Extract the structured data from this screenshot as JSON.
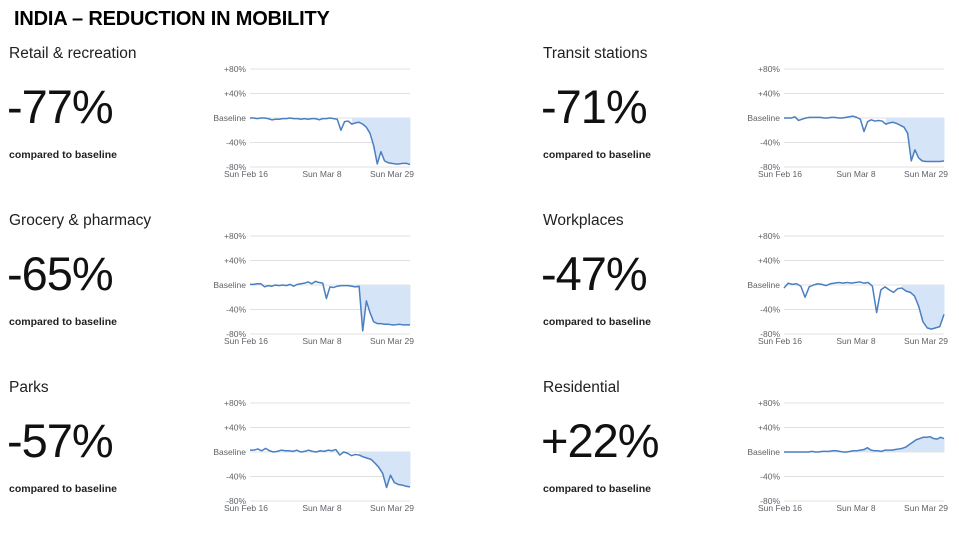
{
  "page_title": "INDIA – REDUCTION IN MOBILITY",
  "chart_data": [
    {
      "type": "line",
      "title": "Retail & recreation",
      "headline": "-77%",
      "caption": "compared to baseline",
      "ylim": [
        -80,
        80
      ],
      "yticks": [
        "+80%",
        "+40%",
        "Baseline",
        "-40%",
        "-80%"
      ],
      "xticks": [
        "Sun Feb 16",
        "Sun Mar 8",
        "Sun Mar 29"
      ],
      "shade_from_index": 28,
      "accent": "#4a7fc1",
      "shade": "#d6e4f7",
      "values": [
        0,
        0,
        -1,
        0,
        0,
        -1,
        -3,
        -2,
        -2,
        -1,
        -1,
        0,
        -1,
        -1,
        -2,
        -1,
        -2,
        -1,
        -1,
        -3,
        -1,
        -1,
        0,
        -1,
        -2,
        -20,
        -6,
        -5,
        -10,
        -8,
        -7,
        -10,
        -15,
        -25,
        -45,
        -75,
        -55,
        -70,
        -73,
        -74,
        -75,
        -75,
        -74,
        -74,
        -76
      ]
    },
    {
      "type": "line",
      "title": "Transit stations",
      "headline": "-71%",
      "caption": "compared to baseline",
      "ylim": [
        -80,
        80
      ],
      "yticks": [
        "+80%",
        "+40%",
        "Baseline",
        "-40%",
        "-80%"
      ],
      "xticks": [
        "Sun Feb 16",
        "Sun Mar 8",
        "Sun Mar 29"
      ],
      "shade_from_index": 28,
      "accent": "#4a7fc1",
      "shade": "#d6e4f7",
      "values": [
        0,
        0,
        0,
        2,
        -4,
        -2,
        0,
        1,
        1,
        1,
        1,
        0,
        0,
        1,
        1,
        0,
        0,
        1,
        2,
        3,
        1,
        -2,
        -22,
        -6,
        -3,
        -5,
        -4,
        -5,
        -10,
        -8,
        -7,
        -9,
        -12,
        -15,
        -25,
        -70,
        -52,
        -65,
        -70,
        -71,
        -71,
        -71,
        -71,
        -71,
        -70
      ]
    },
    {
      "type": "line",
      "title": "Grocery & pharmacy",
      "headline": "-65%",
      "caption": "compared to baseline",
      "ylim": [
        -80,
        80
      ],
      "yticks": [
        "+80%",
        "+40%",
        "Baseline",
        "-40%",
        "-80%"
      ],
      "xticks": [
        "Sun Feb 16",
        "Sun Mar 8",
        "Sun Mar 29"
      ],
      "shade_from_index": 28,
      "accent": "#4a7fc1",
      "shade": "#d6e4f7",
      "values": [
        1,
        1,
        2,
        2,
        -3,
        -1,
        -2,
        0,
        -1,
        0,
        -1,
        1,
        -2,
        1,
        2,
        3,
        5,
        2,
        6,
        4,
        3,
        -22,
        -3,
        -4,
        -2,
        -1,
        -1,
        -1,
        -2,
        -3,
        -2,
        -75,
        -26,
        -45,
        -60,
        -63,
        -63,
        -64,
        -64,
        -65,
        -65,
        -64,
        -65,
        -65,
        -65
      ]
    },
    {
      "type": "line",
      "title": "Workplaces",
      "headline": "-47%",
      "caption": "compared to baseline",
      "ylim": [
        -80,
        80
      ],
      "yticks": [
        "+80%",
        "+40%",
        "Baseline",
        "-40%",
        "-80%"
      ],
      "xticks": [
        "Sun Feb 16",
        "Sun Mar 8",
        "Sun Mar 29"
      ],
      "shade_from_index": 28,
      "accent": "#4a7fc1",
      "shade": "#d6e4f7",
      "values": [
        -5,
        3,
        1,
        2,
        -2,
        -20,
        -3,
        0,
        2,
        1,
        -1,
        2,
        3,
        4,
        3,
        4,
        3,
        4,
        5,
        3,
        4,
        -2,
        -45,
        -8,
        -3,
        -8,
        -12,
        -6,
        -5,
        -10,
        -12,
        -18,
        -35,
        -60,
        -70,
        -72,
        -70,
        -68,
        -48
      ]
    },
    {
      "type": "line",
      "title": "Parks",
      "headline": "-57%",
      "caption": "compared to baseline",
      "ylim": [
        -80,
        80
      ],
      "yticks": [
        "+80%",
        "+40%",
        "Baseline",
        "-40%",
        "-80%"
      ],
      "xticks": [
        "Sun Feb 16",
        "Sun Mar 8",
        "Sun Mar 29"
      ],
      "shade_from_index": 28,
      "accent": "#4a7fc1",
      "shade": "#d6e4f7",
      "values": [
        3,
        3,
        5,
        2,
        6,
        2,
        0,
        1,
        3,
        2,
        2,
        1,
        3,
        0,
        1,
        3,
        1,
        0,
        2,
        1,
        3,
        2,
        4,
        -5,
        0,
        -2,
        -6,
        -4,
        -5,
        -8,
        -10,
        -12,
        -18,
        -25,
        -35,
        -58,
        -38,
        -50,
        -53,
        -54,
        -56,
        -57
      ]
    },
    {
      "type": "line",
      "title": "Residential",
      "headline": "+22%",
      "caption": "compared to baseline",
      "ylim": [
        -80,
        80
      ],
      "yticks": [
        "+80%",
        "+40%",
        "Baseline",
        "-40%",
        "-80%"
      ],
      "xticks": [
        "Sun Feb 16",
        "Sun Mar 8",
        "Sun Mar 29"
      ],
      "shade_from_index": 0,
      "accent": "#4a7fc1",
      "shade": "#d6e4f7",
      "values": [
        0,
        0,
        0,
        0,
        0,
        0,
        0,
        0,
        1,
        0,
        0,
        1,
        1,
        1,
        2,
        2,
        1,
        0,
        0,
        1,
        2,
        2,
        3,
        4,
        7,
        3,
        2,
        2,
        1,
        3,
        3,
        3,
        4,
        5,
        6,
        8,
        12,
        16,
        20,
        22,
        24,
        24,
        25,
        22,
        21,
        24,
        22
      ]
    }
  ]
}
